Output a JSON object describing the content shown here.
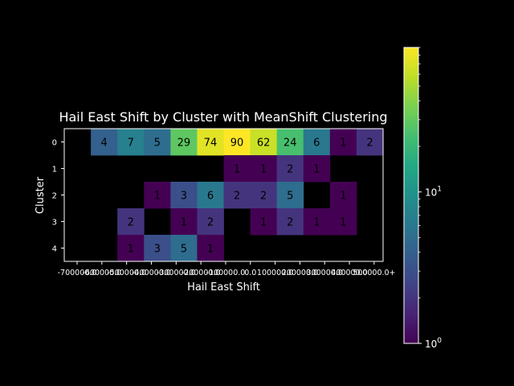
{
  "chart_data": {
    "type": "heatmap",
    "title": "Hail East Shift by Cluster with MeanShift Clustering",
    "xlabel": "Hail East Shift",
    "ylabel": "Cluster",
    "x_tick_labels": [
      "-700000.0",
      "-600000.0",
      "-500000.0",
      "-400000.0",
      "-300000.0",
      "-200000.0",
      "-100000.0",
      "0.0",
      "100000.0",
      "200000.0",
      "300000.0",
      "400000.0",
      "500000.0+"
    ],
    "y_categories": [
      "0",
      "1",
      "2",
      "3",
      "4"
    ],
    "column_count": 12,
    "values": [
      [
        null,
        4,
        7,
        5,
        29,
        74,
        90,
        62,
        24,
        6,
        1,
        2
      ],
      [
        null,
        null,
        null,
        null,
        null,
        null,
        1,
        1,
        2,
        1,
        null,
        null
      ],
      [
        null,
        null,
        null,
        1,
        3,
        6,
        2,
        2,
        5,
        null,
        1,
        null
      ],
      [
        null,
        null,
        2,
        null,
        1,
        2,
        null,
        1,
        2,
        1,
        1,
        null
      ],
      [
        null,
        null,
        1,
        3,
        5,
        1,
        null,
        null,
        null,
        null,
        null,
        null
      ]
    ],
    "colorbar": {
      "scale": "log",
      "min": 1,
      "max": 90,
      "colormap": "viridis",
      "tick_labels": [
        {
          "base": "10",
          "exp": "0",
          "value": 1
        },
        {
          "base": "10",
          "exp": "1",
          "value": 10
        }
      ]
    },
    "background": "#000000",
    "foreground": "#ffffff"
  }
}
